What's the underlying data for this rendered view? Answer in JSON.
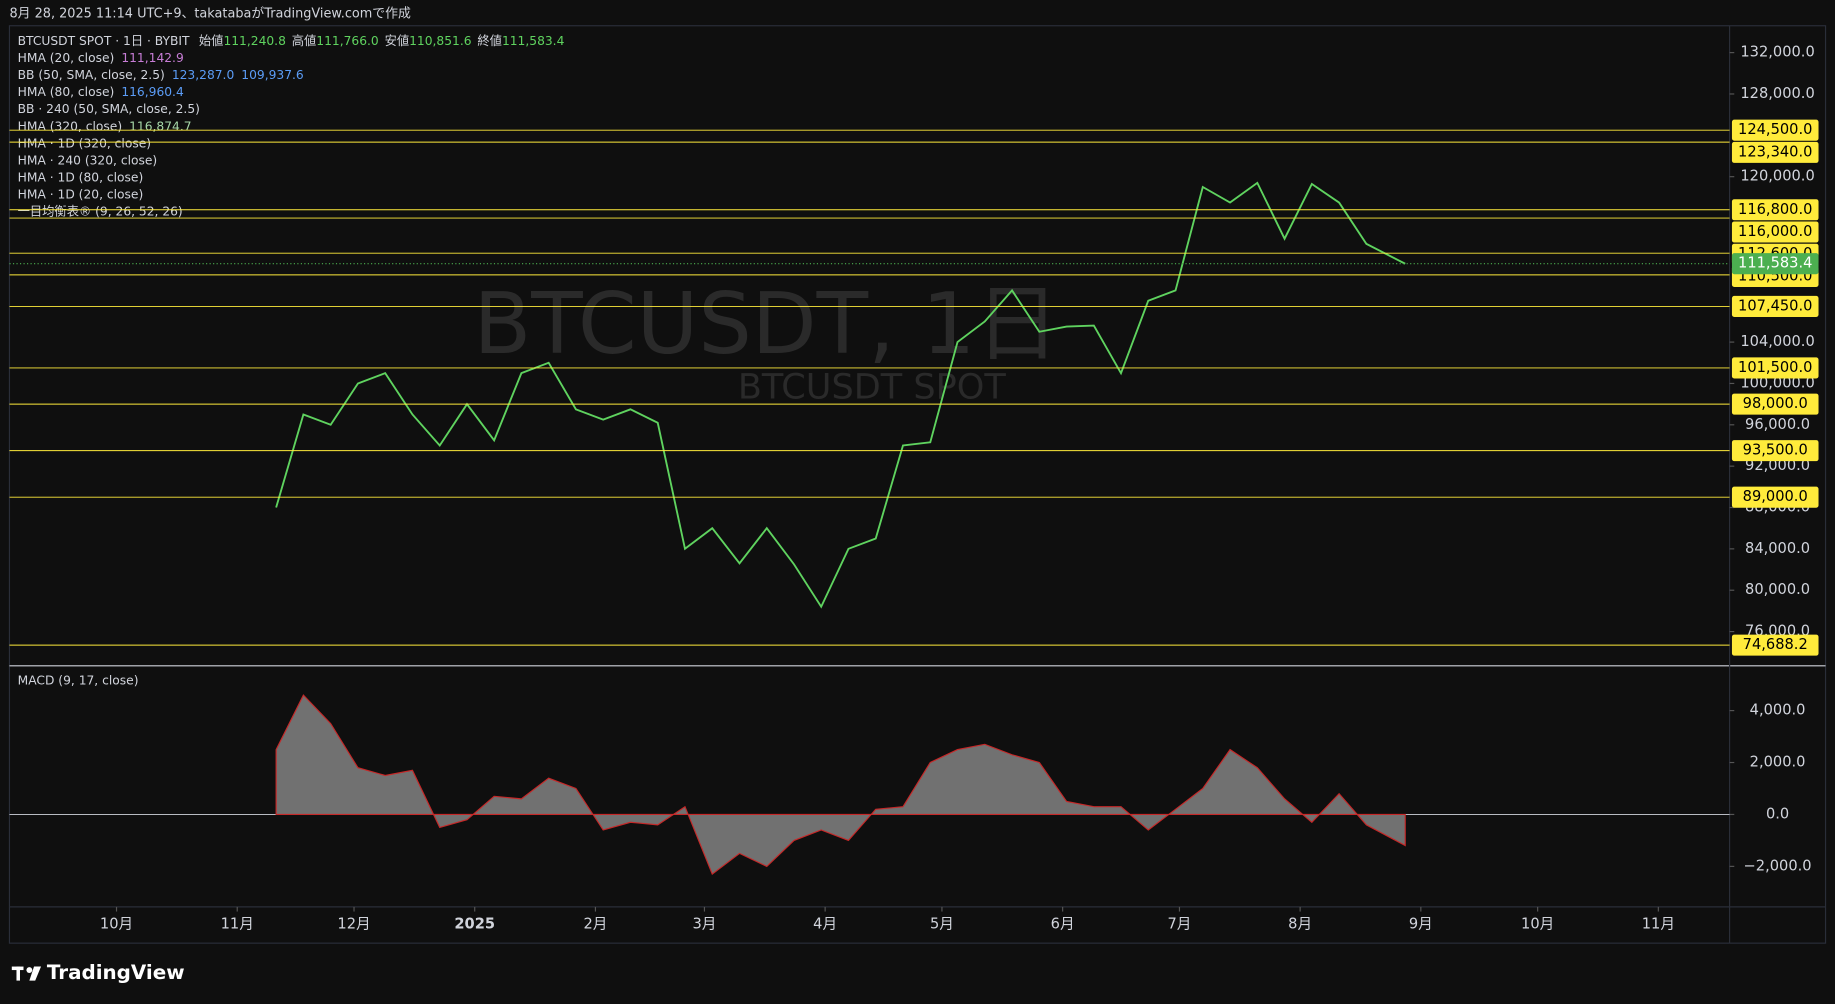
{
  "header": {
    "created": "8月 28, 2025 11:14 UTC+9、takatabaがTradingView.comで作成"
  },
  "footer": {
    "brand": "TradingView"
  },
  "chart_data": [
    {
      "type": "line",
      "watermark": [
        "BTCUSDT, 1日",
        "BTCUSDT SPOT"
      ],
      "ohlc": [
        {
          "label": "始値",
          "value": "111,240.8"
        },
        {
          "label": "高値",
          "value": "111,766.0"
        },
        {
          "label": "安値",
          "value": "110,851.6"
        },
        {
          "label": "終値",
          "value": "111,583.4"
        }
      ],
      "indicators": [
        {
          "name": "HMA (20, close)",
          "values": [
            "111,142.9"
          ],
          "colors": [
            "#c77dd6"
          ]
        },
        {
          "name": "BB (50, SMA, close, 2.5)",
          "values": [
            "123,287.0",
            "109,937.6"
          ],
          "colors": [
            "#5b9cf6",
            "#5b9cf6"
          ]
        },
        {
          "name": "HMA (80, close)",
          "values": [
            "116,960.4"
          ],
          "colors": [
            "#5b9cf6"
          ]
        },
        {
          "name": "BB · 240 (50, SMA, close, 2.5)",
          "values": [],
          "colors": []
        },
        {
          "name": "HMA (320, close)",
          "values": [
            "116,874.7"
          ],
          "colors": [
            "#a5d6a7"
          ]
        },
        {
          "name": "HMA · 1D (320, close)",
          "values": [],
          "colors": []
        },
        {
          "name": "HMA · 240 (320, close)",
          "values": [],
          "colors": []
        },
        {
          "name": "HMA · 1D (80, close)",
          "values": [],
          "colors": []
        },
        {
          "name": "HMA · 1D (20, close)",
          "values": [],
          "colors": []
        },
        {
          "name": "一目均衡表® (9, 26, 52, 26)",
          "values": [],
          "colors": []
        }
      ],
      "x": [
        71,
        78,
        85,
        92,
        99,
        106,
        113,
        120,
        127,
        134,
        141,
        148,
        155,
        162,
        169,
        176,
        183,
        190,
        197,
        204,
        211,
        218,
        225,
        232,
        239,
        246,
        253,
        260,
        267,
        274,
        281,
        288,
        295,
        302,
        309,
        316,
        323,
        330,
        337,
        344,
        351,
        361
      ],
      "series": [
        {
          "name": "BTCUSDT SPOT · 1日 · BYBIT",
          "color": "#5fd35f",
          "values": [
            88000,
            97000,
            96000,
            100000,
            101000,
            97000,
            94000,
            98000,
            94500,
            101000,
            102000,
            97500,
            96500,
            97500,
            96200,
            84000,
            86000,
            82600,
            86000,
            82500,
            78400,
            84000,
            85000,
            94000,
            94300,
            104000,
            106000,
            109000,
            105000,
            105500,
            105600,
            101000,
            108000,
            109000,
            119000,
            117500,
            119400,
            114000,
            119300,
            117500,
            113500,
            111583.4
          ]
        }
      ],
      "xlim": [
        2.5,
        444.3
      ],
      "xticks": [
        {
          "value": 30,
          "label": "10月"
        },
        {
          "value": 61,
          "label": "11月"
        },
        {
          "value": 91,
          "label": "12月"
        },
        {
          "value": 122,
          "label": "2025"
        },
        {
          "value": 153,
          "label": "2月"
        },
        {
          "value": 181,
          "label": "3月"
        },
        {
          "value": 212,
          "label": "4月"
        },
        {
          "value": 242,
          "label": "5月"
        },
        {
          "value": 273,
          "label": "6月"
        },
        {
          "value": 303,
          "label": "7月"
        },
        {
          "value": 334,
          "label": "8月"
        },
        {
          "value": 365,
          "label": "9月"
        },
        {
          "value": 395,
          "label": "10月"
        },
        {
          "value": 426,
          "label": "11月"
        }
      ],
      "ylim": [
        72800,
        134600
      ],
      "yticks": [
        {
          "value": 132000,
          "label": "132,000.0"
        },
        {
          "value": 128000,
          "label": "128,000.0"
        },
        {
          "value": 120000,
          "label": "120,000.0"
        },
        {
          "value": 104000,
          "label": "104,000.0"
        },
        {
          "value": 100000,
          "label": "100,000.0"
        },
        {
          "value": 96000,
          "label": "96,000.0"
        },
        {
          "value": 92000,
          "label": "92,000.0"
        },
        {
          "value": 88000,
          "label": "88,000.0"
        },
        {
          "value": 84000,
          "label": "84,000.0"
        },
        {
          "value": 80000,
          "label": "80,000.0"
        },
        {
          "value": 76000,
          "label": "76,000.0"
        }
      ],
      "levels": [
        {
          "value": 124500,
          "label": "124,500.0"
        },
        {
          "value": 123340,
          "label": "123,340.0"
        },
        {
          "value": 116800,
          "label": "116,800.0"
        },
        {
          "value": 116000,
          "label": "116,000.0"
        },
        {
          "value": 112600,
          "label": "112,600.0"
        },
        {
          "value": 110500,
          "label": "110,500.0"
        },
        {
          "value": 107450,
          "label": "107,450.0"
        },
        {
          "value": 101500,
          "label": "101,500.0"
        },
        {
          "value": 98000,
          "label": "98,000.0"
        },
        {
          "value": 93500,
          "label": "93,500.0"
        },
        {
          "value": 89000,
          "label": "89,000.0"
        },
        {
          "value": 74688.2,
          "label": "74,688.2"
        }
      ],
      "level_color": "#ffeb3b",
      "last_price": {
        "value": 111583.4,
        "label": "111,583.4",
        "color": "#4caf50"
      }
    },
    {
      "type": "area",
      "title": "MACD (9, 17, close)",
      "color": "#8a8a8a",
      "zero_line": true,
      "x": [
        71,
        78,
        85,
        92,
        99,
        106,
        113,
        120,
        127,
        134,
        141,
        148,
        155,
        162,
        169,
        176,
        183,
        190,
        197,
        204,
        211,
        218,
        225,
        232,
        239,
        246,
        253,
        260,
        267,
        274,
        281,
        288,
        295,
        302,
        309,
        316,
        323,
        330,
        337,
        344,
        351,
        361
      ],
      "values": [
        2500,
        4600,
        3500,
        1800,
        1500,
        1700,
        -500,
        -200,
        700,
        600,
        1400,
        1000,
        -600,
        -300,
        -400,
        300,
        -2300,
        -1500,
        -2000,
        -1000,
        -600,
        -1000,
        200,
        300,
        2000,
        2500,
        2700,
        2300,
        2000,
        500,
        300,
        300,
        -600,
        200,
        1000,
        2500,
        1800,
        600,
        -300,
        800,
        -400,
        -1200
      ],
      "xlim": [
        2.5,
        444.3
      ],
      "ylim": [
        -3560,
        5680
      ],
      "yticks": [
        {
          "value": 4000,
          "label": "4,000.0"
        },
        {
          "value": 2000,
          "label": "2,000.0"
        },
        {
          "value": 0,
          "label": "0.0"
        },
        {
          "value": -2000,
          "label": "−2,000.0"
        }
      ]
    }
  ]
}
